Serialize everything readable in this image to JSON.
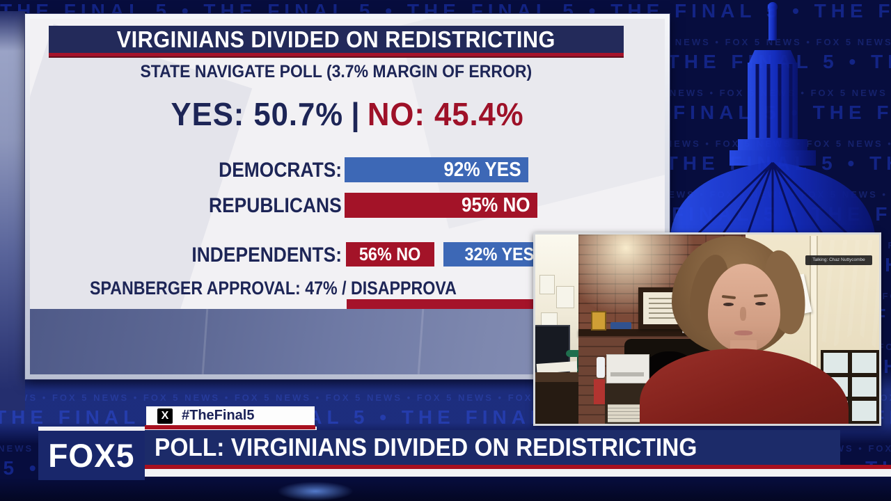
{
  "channel": {
    "logo": "FOX5",
    "hashtag": "#TheFinal5",
    "x_glyph": "X"
  },
  "lower_third": {
    "headline": "POLL: VIRGINIANS DIVIDED ON REDISTRICTING"
  },
  "poll_card": {
    "title": "VIRGINIANS DIVIDED ON REDISTRICTING",
    "subtitle": "STATE NAVIGATE POLL (3.7% MARGIN OF ERROR)",
    "yes_result": "YES: 50.7%",
    "separator": "|",
    "no_result": "NO: 45.4%",
    "democrats_label": "DEMOCRATS:",
    "democrats_bar": "92% YES",
    "republicans_label": "REPUBLICANS",
    "republicans_bar": "95% NO",
    "independents_label": "INDEPENDENTS:",
    "independents_no": "56% NO",
    "independents_yes": "32% YES",
    "approval_line": "SPANBERGER APPROVAL: 47% / DISAPPROVA"
  },
  "webcam": {
    "speaker_label": "Talking: Chaz Nuttycombe",
    "wall_sign": "STATE+",
    "wall_paper": "CNalysis"
  },
  "background": {
    "pattern_large": "THE FINAL 5 • ",
    "pattern_small": "FOX 5 NEWS • "
  },
  "colors": {
    "yes_blue": "#3d68b6",
    "no_red": "#a31328",
    "navy_text": "#1d2556",
    "header_navy": "#232a5a",
    "red_accent": "#a5132a",
    "banner_navy": "#1c2b69",
    "background_navy": "#070d3e",
    "pattern_blue": "#1e38c0"
  },
  "chart_data": {
    "type": "bar",
    "title": "VIRGINIANS DIVIDED ON REDISTRICTING",
    "subtitle": "STATE NAVIGATE POLL (3.7% MARGIN OF ERROR)",
    "overall": {
      "yes_pct": 50.7,
      "no_pct": 45.4,
      "margin_of_error_pct": 3.7
    },
    "categories": [
      "DEMOCRATS",
      "REPUBLICANS",
      "INDEPENDENTS",
      "INDEPENDENTS"
    ],
    "series": [
      {
        "name": "DEMOCRATS",
        "response": "YES",
        "value": 92,
        "color": "#3d68b6"
      },
      {
        "name": "REPUBLICANS",
        "response": "NO",
        "value": 95,
        "color": "#a31328"
      },
      {
        "name": "INDEPENDENTS",
        "response": "NO",
        "value": 56,
        "color": "#a31328"
      },
      {
        "name": "INDEPENDENTS",
        "response": "YES",
        "value": 32,
        "color": "#3d68b6"
      }
    ],
    "spanberger": {
      "approval_pct": 47
    },
    "xlabel": "",
    "ylabel": "",
    "legend": "none",
    "grid": false
  }
}
